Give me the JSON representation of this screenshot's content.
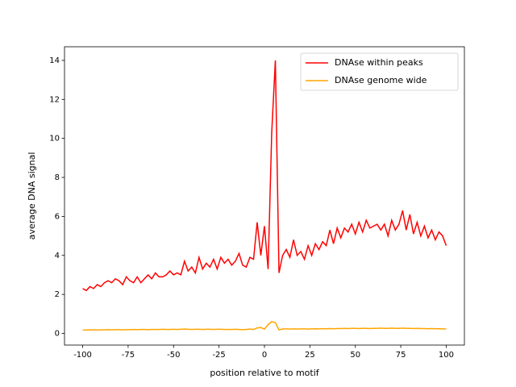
{
  "chart_data": {
    "type": "line",
    "xlabel": "position relative to motif",
    "ylabel": "average DNA signal",
    "x": [
      -100,
      -98,
      -96,
      -94,
      -92,
      -90,
      -88,
      -86,
      -84,
      -82,
      -80,
      -78,
      -76,
      -74,
      -72,
      -70,
      -68,
      -66,
      -64,
      -62,
      -60,
      -58,
      -56,
      -54,
      -52,
      -50,
      -48,
      -46,
      -44,
      -42,
      -40,
      -38,
      -36,
      -34,
      -32,
      -30,
      -28,
      -26,
      -24,
      -22,
      -20,
      -18,
      -16,
      -14,
      -12,
      -10,
      -8,
      -6,
      -4,
      -2,
      0,
      2,
      4,
      6,
      8,
      10,
      12,
      14,
      16,
      18,
      20,
      22,
      24,
      26,
      28,
      30,
      32,
      34,
      36,
      38,
      40,
      42,
      44,
      46,
      48,
      50,
      52,
      54,
      56,
      58,
      60,
      62,
      64,
      66,
      68,
      70,
      72,
      74,
      76,
      78,
      80,
      82,
      84,
      86,
      88,
      90,
      92,
      94,
      96,
      98,
      100
    ],
    "series": [
      {
        "name": "DNAse within peaks",
        "color": "#ff0000",
        "values": [
          2.3,
          2.2,
          2.4,
          2.3,
          2.5,
          2.4,
          2.6,
          2.7,
          2.6,
          2.8,
          2.7,
          2.5,
          2.9,
          2.7,
          2.6,
          2.9,
          2.6,
          2.8,
          3.0,
          2.8,
          3.1,
          2.9,
          2.9,
          3.0,
          3.2,
          3.0,
          3.1,
          3.0,
          3.7,
          3.2,
          3.4,
          3.1,
          3.9,
          3.3,
          3.6,
          3.4,
          3.8,
          3.3,
          3.9,
          3.6,
          3.8,
          3.5,
          3.7,
          4.1,
          3.5,
          3.4,
          3.9,
          3.8,
          5.7,
          4.0,
          5.5,
          3.3,
          10.3,
          14.0,
          3.1,
          4.0,
          4.3,
          3.9,
          4.8,
          4.0,
          4.2,
          3.8,
          4.5,
          4.0,
          4.6,
          4.3,
          4.7,
          4.5,
          5.3,
          4.6,
          5.4,
          4.9,
          5.4,
          5.2,
          5.6,
          5.1,
          5.7,
          5.2,
          5.8,
          5.4,
          5.5,
          5.6,
          5.3,
          5.6,
          5.0,
          5.8,
          5.3,
          5.6,
          6.3,
          5.3,
          6.1,
          5.1,
          5.7,
          5.0,
          5.5,
          4.9,
          5.3,
          4.8,
          5.2,
          5.0,
          4.5
        ]
      },
      {
        "name": "DNAse genome wide",
        "color": "#ffa500",
        "values": [
          0.17,
          0.17,
          0.18,
          0.18,
          0.17,
          0.18,
          0.18,
          0.19,
          0.18,
          0.19,
          0.19,
          0.18,
          0.19,
          0.19,
          0.2,
          0.19,
          0.2,
          0.2,
          0.19,
          0.2,
          0.2,
          0.2,
          0.21,
          0.2,
          0.2,
          0.21,
          0.2,
          0.21,
          0.22,
          0.21,
          0.2,
          0.21,
          0.21,
          0.2,
          0.21,
          0.21,
          0.2,
          0.21,
          0.21,
          0.2,
          0.2,
          0.2,
          0.21,
          0.2,
          0.19,
          0.2,
          0.22,
          0.2,
          0.28,
          0.3,
          0.22,
          0.45,
          0.6,
          0.55,
          0.18,
          0.22,
          0.23,
          0.22,
          0.23,
          0.22,
          0.23,
          0.23,
          0.22,
          0.23,
          0.24,
          0.23,
          0.24,
          0.24,
          0.25,
          0.24,
          0.25,
          0.25,
          0.26,
          0.25,
          0.26,
          0.26,
          0.25,
          0.26,
          0.26,
          0.25,
          0.26,
          0.26,
          0.27,
          0.26,
          0.26,
          0.27,
          0.26,
          0.26,
          0.27,
          0.26,
          0.26,
          0.25,
          0.26,
          0.25,
          0.25,
          0.24,
          0.25,
          0.24,
          0.24,
          0.23,
          0.22
        ]
      }
    ],
    "xlim": [
      -110,
      110
    ],
    "ylim": [
      -0.6,
      14.7
    ],
    "xticks": [
      -100,
      -75,
      -50,
      -25,
      0,
      25,
      50,
      75,
      100
    ],
    "yticks": [
      0,
      2,
      4,
      6,
      8,
      10,
      12,
      14
    ],
    "legend": "upper right",
    "grid": false
  }
}
